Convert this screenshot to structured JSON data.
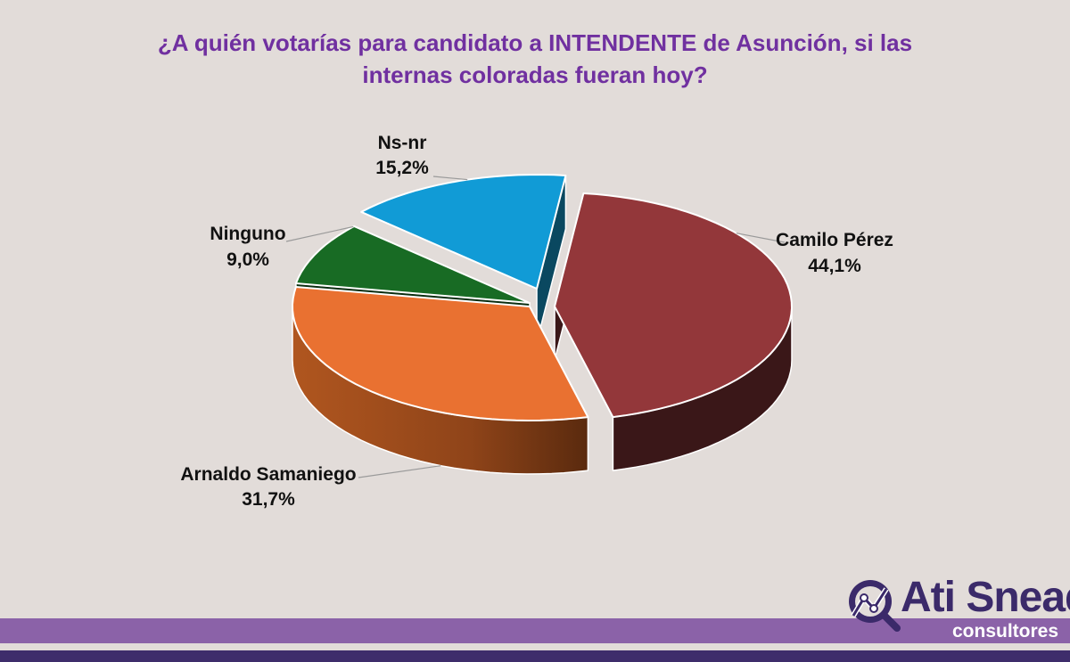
{
  "chart_data": {
    "type": "pie",
    "title_lines": [
      "¿A quién votarías para candidato a INTENDENTE de Asunción, si las",
      "internas coloradas fueran hoy?"
    ],
    "slices": [
      {
        "label": "Camilo Pérez",
        "value": 44.1,
        "value_label": "44,1%",
        "color": "#93373a",
        "side_color": "#3a1718"
      },
      {
        "label": "Arnaldo Samaniego",
        "value": 31.7,
        "value_label": "31,7%",
        "color": "#e97131",
        "side_color": "#a44d1c"
      },
      {
        "label": "Ninguno",
        "value": 9.0,
        "value_label": "9,0%",
        "color": "#186b24",
        "side_color": "#0b2e10"
      },
      {
        "label": "Ns-nr",
        "value": 15.2,
        "value_label": "15,2%",
        "color": "#119bd6",
        "side_color": "#0a4860"
      }
    ]
  },
  "logo": {
    "name": "Ati Snead",
    "subtitle": "consultores",
    "icon": "magnifier-chart-icon",
    "color": "#3b2a6a"
  }
}
